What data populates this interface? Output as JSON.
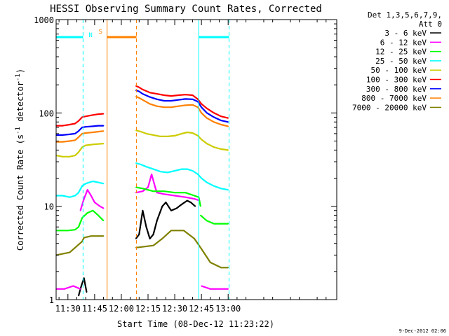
{
  "chart_data": {
    "type": "line",
    "title": "HESSI Observing Summary Count Rates, Corrected",
    "xlabel": "Start Time (08-Dec-12 11:23:22)",
    "ylabel_main": "Corrected Count Rate (s",
    "ylabel_sup1": "-1",
    "ylabel_mid": " detector",
    "ylabel_sup2": "-1",
    "ylabel_end": ")",
    "yscale": "log",
    "xlim_min": [
      23.37,
      181
    ],
    "ylim": [
      1,
      1000
    ],
    "x_ticks": [
      {
        "min": 30,
        "label": "11:30"
      },
      {
        "min": 45,
        "label": "11:45"
      },
      {
        "min": 60,
        "label": "12:00"
      },
      {
        "min": 75,
        "label": "12:15"
      },
      {
        "min": 90,
        "label": "12:30"
      },
      {
        "min": 105,
        "label": "12:45"
      },
      {
        "min": 120,
        "label": "13:00"
      }
    ],
    "y_ticks": [
      {
        "value": 1,
        "label": "1"
      },
      {
        "value": 10,
        "label": "10"
      },
      {
        "value": 100,
        "label": "100"
      },
      {
        "value": 1000,
        "label": "1000"
      }
    ],
    "legend": {
      "header1": "Det 1,3,5,6,7,9,",
      "header2": "Att 0",
      "placement": "right",
      "entries": [
        {
          "label": "3 - 6 keV",
          "color": "#000000"
        },
        {
          "label": "6 - 12 keV",
          "color": "#ff00ff"
        },
        {
          "label": "12 - 25 keV",
          "color": "#00ff00"
        },
        {
          "label": "25 - 50 keV",
          "color": "#00ffff"
        },
        {
          "label": "50 - 100 keV",
          "color": "#cccc00"
        },
        {
          "label": "100 - 300 keV",
          "color": "#ff0000"
        },
        {
          "label": "300 - 800 keV",
          "color": "#0000ff"
        },
        {
          "label": "800 - 7000 keV",
          "color": "#ff8000"
        },
        {
          "label": "7000 - 20000 keV",
          "color": "#808000"
        }
      ]
    },
    "periods": {
      "night_color": "#00ffff",
      "saa_color": "#ff8000",
      "night_label": "N",
      "saa_label": "S",
      "night1": [
        23.37,
        38.5
      ],
      "saa": [
        52,
        68.5
      ],
      "night2": [
        103.5,
        120.5
      ],
      "bar_level": 650
    },
    "series": [
      {
        "name": "7000 - 20000 keV",
        "color": "#808000",
        "segments": [
          {
            "x": [
              23.4,
              31,
              38,
              39,
              43,
              50
            ],
            "y": [
              3,
              3.2,
              4.2,
              4.6,
              4.8,
              4.8
            ]
          },
          {
            "x": [
              68.2,
              78,
              83,
              88,
              95,
              101,
              105,
              110,
              116,
              120
            ],
            "y": [
              3.6,
              3.8,
              4.5,
              5.5,
              5.5,
              4.5,
              3.5,
              2.5,
              2.2,
              2.2
            ]
          }
        ]
      },
      {
        "name": "3 - 6 keV",
        "color": "#000000",
        "segments": [
          {
            "x": [
              36,
              37.5,
              39,
              40.5
            ],
            "y": [
              1.1,
              1.4,
              1.7,
              1.2
            ]
          },
          {
            "x": [
              68.2,
              70,
              72,
              74,
              76,
              78,
              80,
              83,
              85,
              88,
              91,
              94,
              97,
              99,
              101.5
            ],
            "y": [
              4.5,
              5,
              9,
              6,
              4.5,
              5,
              7,
              10,
              11,
              9,
              9.5,
              10.5,
              11.5,
              11,
              10
            ]
          }
        ]
      },
      {
        "name": "6 - 12 keV",
        "color": "#ff00ff",
        "segments": [
          {
            "x": [
              23.4,
              28,
              33,
              37
            ],
            "y": [
              1.3,
              1.3,
              1.4,
              1.3
            ]
          },
          {
            "x": [
              37,
              39,
              41,
              43,
              45,
              48,
              50
            ],
            "y": [
              9,
              12,
              15,
              13,
              11,
              10,
              9.5
            ]
          },
          {
            "x": [
              68.2,
              72,
              75,
              77,
              79,
              80,
              84,
              90,
              96,
              101,
              104
            ],
            "y": [
              14,
              14.5,
              16,
              22,
              16,
              14,
              13.5,
              13,
              12.5,
              12,
              11.5
            ]
          },
          {
            "x": [
              105,
              110,
              115,
              120
            ],
            "y": [
              1.4,
              1.3,
              1.3,
              1.3
            ]
          }
        ]
      },
      {
        "name": "12 - 25 keV",
        "color": "#00ff00",
        "segments": [
          {
            "x": [
              23.4,
              30,
              34,
              36,
              38,
              41,
              44,
              47,
              50
            ],
            "y": [
              5.5,
              5.5,
              5.6,
              6,
              7.5,
              8.5,
              9,
              8,
              7
            ]
          },
          {
            "x": [
              68.2,
              72,
              78,
              84,
              90,
              96,
              101,
              103.5,
              104.5
            ],
            "y": [
              16,
              15.5,
              14.5,
              14.5,
              14,
              14,
              13,
              12.5,
              10
            ]
          },
          {
            "x": [
              104.5,
              108,
              112,
              116,
              120
            ],
            "y": [
              8,
              7,
              6.5,
              6.5,
              6.5
            ]
          }
        ]
      },
      {
        "name": "25 - 50 keV",
        "color": "#00ffff",
        "segments": [
          {
            "x": [
              23.4,
              27,
              31,
              34,
              36,
              38,
              40,
              42,
              44,
              47,
              50
            ],
            "y": [
              13,
              13,
              12.5,
              13,
              14,
              16.5,
              17.5,
              18,
              18.5,
              18,
              17.5
            ]
          },
          {
            "x": [
              68.2,
              71,
              74,
              78,
              82,
              86,
              90,
              94,
              97,
              100,
              103,
              105,
              108,
              112,
              116,
              120
            ],
            "y": [
              29,
              28,
              26.5,
              25,
              23.5,
              23,
              24,
              25,
              25,
              24,
              22,
              20,
              18,
              16.5,
              15.5,
              15
            ]
          }
        ]
      },
      {
        "name": "50 - 100 keV",
        "color": "#cccc00",
        "segments": [
          {
            "x": [
              23.4,
              27,
              31,
              34,
              36,
              38,
              40,
              44,
              47,
              50
            ],
            "y": [
              35,
              34,
              34,
              35,
              38,
              43,
              45,
              46,
              46.5,
              47
            ]
          },
          {
            "x": [
              68.2,
              71,
              74,
              78,
              82,
              86,
              90,
              94,
              97,
              100,
              103,
              105,
              108,
              112,
              116,
              120
            ],
            "y": [
              65,
              63,
              60,
              58,
              56,
              56,
              57,
              60,
              62,
              61,
              57,
              52,
              47,
              43,
              41,
              40
            ]
          }
        ]
      },
      {
        "name": "800 - 7000 keV",
        "color": "#ff8000",
        "segments": [
          {
            "x": [
              23.4,
              27,
              31,
              34,
              36,
              38,
              40,
              44,
              47,
              50
            ],
            "y": [
              49,
              49,
              50,
              51,
              55,
              60,
              61,
              62,
              63,
              64
            ]
          },
          {
            "x": [
              68.2,
              70,
              72,
              76,
              80,
              84,
              88,
              92,
              96,
              100,
              103,
              105,
              108,
              112,
              116,
              120
            ],
            "y": [
              150,
              145,
              138,
              125,
              118,
              115,
              115,
              118,
              121,
              122,
              115,
              100,
              88,
              80,
              75,
              72
            ]
          }
        ]
      },
      {
        "name": "300 - 800 keV",
        "color": "#0000ff",
        "segments": [
          {
            "x": [
              23.4,
              27,
              31,
              34,
              36,
              38,
              40,
              44,
              47,
              50
            ],
            "y": [
              58,
              58,
              59,
              60,
              64,
              70,
              71,
              72,
              73,
              73
            ]
          },
          {
            "x": [
              68.2,
              70,
              72,
              76,
              80,
              84,
              88,
              92,
              96,
              100,
              103,
              105,
              108,
              112,
              116,
              120
            ],
            "y": [
              175,
              170,
              160,
              148,
              140,
              135,
              135,
              138,
              141,
              140,
              132,
              115,
              100,
              90,
              83,
              80
            ]
          }
        ]
      },
      {
        "name": "100 - 300 keV",
        "color": "#ff0000",
        "segments": [
          {
            "x": [
              23.4,
              27,
              31,
              34,
              36,
              38,
              40,
              44,
              47,
              50
            ],
            "y": [
              73,
              73,
              75,
              77,
              82,
              90,
              92,
              95,
              97,
              98
            ]
          },
          {
            "x": [
              68.2,
              70,
              72,
              76,
              80,
              84,
              88,
              92,
              96,
              100,
              103,
              105,
              108,
              112,
              116,
              120
            ],
            "y": [
              195,
              188,
              178,
              165,
              160,
              155,
              152,
              155,
              157,
              155,
              140,
              125,
              112,
              100,
              92,
              88
            ]
          }
        ]
      }
    ]
  },
  "footer_date": "9-Dec-2012 02:06"
}
